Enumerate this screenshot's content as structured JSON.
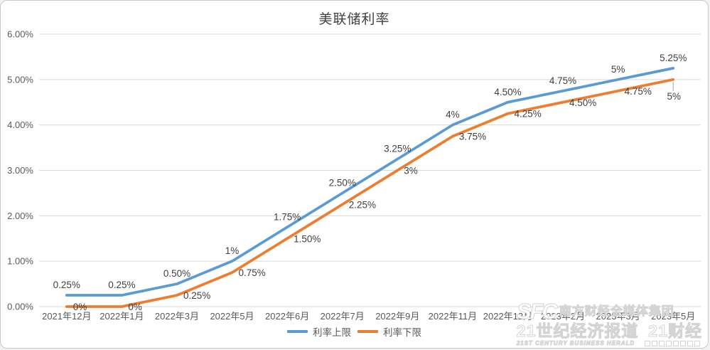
{
  "chart_data": {
    "type": "line",
    "title": "美联储利率",
    "categories": [
      "2021年12月",
      "2022年1月",
      "2022年3月",
      "2022年5月",
      "2022年6月",
      "2022年7月",
      "2022年9月",
      "2022年11月",
      "2022年12月",
      "2023年2月",
      "2023年3月",
      "2023年5月"
    ],
    "y_ticks": [
      "0.00%",
      "1.00%",
      "2.00%",
      "3.00%",
      "4.00%",
      "5.00%",
      "6.00%"
    ],
    "ylim": [
      0,
      6
    ],
    "grid": true,
    "legend_position": "bottom",
    "series": [
      {
        "name": "利率上限",
        "color": "#5B9BD5",
        "values": [
          0.25,
          0.25,
          0.5,
          1,
          1.75,
          2.5,
          3.25,
          4,
          4.5,
          4.75,
          5,
          5.25
        ],
        "labels": [
          "0.25%",
          "0.25%",
          "0.50%",
          "1%",
          "1.75%",
          "2.50%",
          "3.25%",
          "4%",
          "4.50%",
          "4.75%",
          "5%",
          "5.25%"
        ],
        "label_position": "above"
      },
      {
        "name": "利率下限",
        "color": "#ED7D31",
        "values": [
          0,
          0,
          0.25,
          0.75,
          1.5,
          2.25,
          3,
          3.75,
          4.25,
          4.5,
          4.75,
          5
        ],
        "labels": [
          "0%",
          "0%",
          "0.25%",
          "0.75%",
          "1.50%",
          "2.25%",
          "3%",
          "3.75%",
          "4.25%",
          "4.50%",
          "4.75%",
          "5%"
        ],
        "label_position": "right",
        "last_label_position": "below-with-leader"
      }
    ]
  },
  "watermark": {
    "logo": "SFC",
    "org": "南方财经全媒体集团",
    "brand1": "21世纪经济报道",
    "brand2": "21财经",
    "english": "21ST CENTURY BUSINESS HERALD"
  },
  "colors": {
    "grid": "#d9d9d9",
    "axis_text": "#595959",
    "label_text": "#3f3f3f",
    "leader": "#a6a6a6",
    "card_border": "#c9c9c9"
  }
}
